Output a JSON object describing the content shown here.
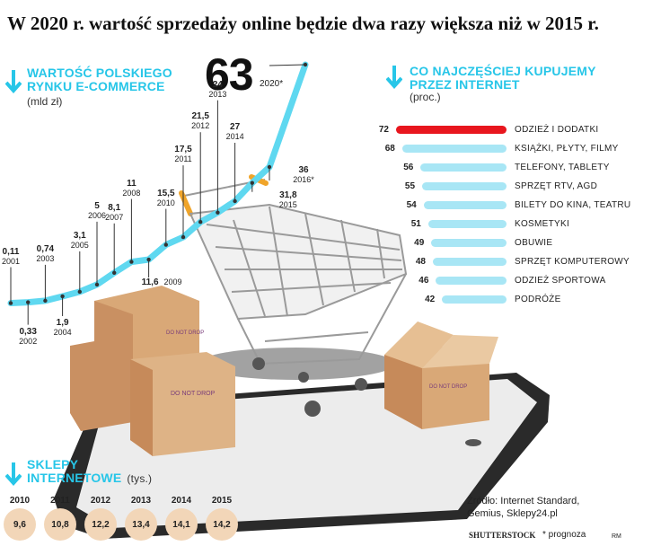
{
  "title": "W 2020 r. wartość sprzedaży online będzie dwa razy większa niż w 2015 r.",
  "market": {
    "title_line1": "WARTOŚĆ POLSKIEGO",
    "title_line2": "RYNKU E-COMMERCE",
    "unit": "(mld zł)",
    "highlight_value": "63",
    "highlight_year": "2020*"
  },
  "purchases": {
    "title_line1": "CO NAJCZĘŚCIEJ KUPUJEMY",
    "title_line2": "PRZEZ INTERNET",
    "unit": "(proc.)"
  },
  "shops": {
    "title_line1": "SKLEPY",
    "title_line2": "INTERNETOWE",
    "unit": "(tys.)"
  },
  "source": "Źródło: Internet Standard,",
  "source2": "Gemius, Sklepy24.pl",
  "credit": "SHUTTERSTOCK",
  "forecast_note": "* prognoza",
  "author": "RM",
  "colors": {
    "accent": "#27c6e8",
    "line": "#5fd8f0",
    "highlight_bar": "#e8161e",
    "bar": "#a8e6f5",
    "circle": "#f2d6b8"
  },
  "chart_data": [
    {
      "type": "line",
      "title": "WARTOŚĆ POLSKIEGO RYNKU E-COMMERCE",
      "ylabel": "(mld zł)",
      "x": [
        "2001",
        "2002",
        "2003",
        "2004",
        "2005",
        "2006",
        "2007",
        "2008",
        "2009",
        "2010",
        "2011",
        "2012",
        "2013",
        "2014",
        "2015",
        "2016*",
        "2020*"
      ],
      "values": [
        0.11,
        0.33,
        0.74,
        1.9,
        3.1,
        5,
        8.1,
        11,
        11.6,
        15.5,
        17.5,
        21.5,
        24,
        27,
        31.8,
        36,
        63
      ],
      "value_labels": [
        "0,11",
        "0,33",
        "0,74",
        "1,9",
        "3,1",
        "5",
        "8,1",
        "11",
        "11,6",
        "15,5",
        "17,5",
        "21,5",
        "24",
        "27",
        "31,8",
        "36",
        "63"
      ]
    },
    {
      "type": "bar",
      "title": "CO NAJCZĘŚCIEJ KUPUJEMY PRZEZ INTERNET",
      "ylabel": "(proc.)",
      "categories": [
        "ODZIEŻ I DODATKI",
        "KSIĄŻKI, PŁYTY, FILMY",
        "TELEFONY, TABLETY",
        "SPRZĘT RTV, AGD",
        "BILETY DO KINA, TEATRU",
        "KOSMETYKI",
        "OBUWIE",
        "SPRZĘT KOMPUTEROWY",
        "ODZIEŻ SPORTOWA",
        "PODRÓŻE"
      ],
      "values": [
        72,
        68,
        56,
        55,
        54,
        51,
        49,
        48,
        46,
        42
      ]
    },
    {
      "type": "table",
      "title": "SKLEPY INTERNETOWE",
      "ylabel": "(tys.)",
      "categories": [
        "2010",
        "2011",
        "2012",
        "2013",
        "2014",
        "2015"
      ],
      "values": [
        9.6,
        10.8,
        12.2,
        13.4,
        14.1,
        14.2
      ],
      "value_labels": [
        "9,6",
        "10,8",
        "12,2",
        "13,4",
        "14,1",
        "14,2"
      ]
    }
  ]
}
